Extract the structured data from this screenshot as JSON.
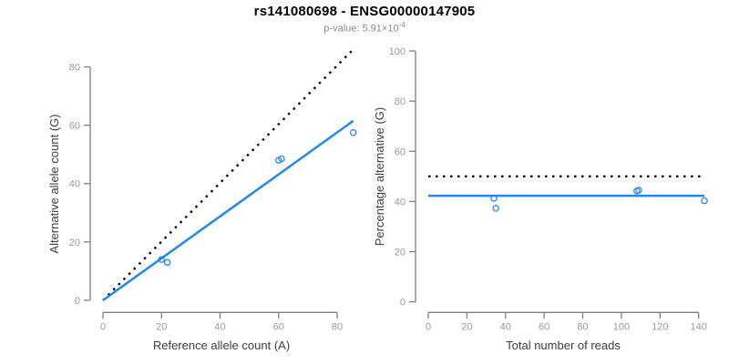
{
  "header": {
    "title": "rs141080698 - ENSG00000147905",
    "p_value_text": "p-value: 5.91×10",
    "p_value_exponent": "-4"
  },
  "colors": {
    "accent_blue": "#2188ED",
    "dotted_line_black": "#0a0a0a",
    "axis_gray": "#808080",
    "tick_label_gray": "#999999",
    "axis_title_gray": "#3d3d3d",
    "title_black": "#000000",
    "subtitle_gray": "#8a8a8a"
  },
  "chart_data": [
    {
      "type": "scatter",
      "panel": "left",
      "xlabel": "Reference allele count (A)",
      "ylabel": "Alternative allele count (G)",
      "xlim": [
        0,
        87
      ],
      "ylim": [
        0,
        87
      ],
      "xticks": [
        0,
        20,
        40,
        60,
        80
      ],
      "yticks": [
        0,
        20,
        40,
        60,
        80
      ],
      "grid": false,
      "legend": null,
      "points": [
        [
          20,
          14
        ],
        [
          22,
          13
        ],
        [
          60,
          48
        ],
        [
          61,
          48.5
        ],
        [
          85.5,
          57.5
        ]
      ],
      "lines": [
        {
          "name": "identity-line",
          "style": "dotted",
          "x1": 0,
          "y1": 0,
          "x2": 85,
          "y2": 85.5
        },
        {
          "name": "regression-line",
          "style": "solid",
          "x1": 0,
          "y1": 0,
          "x2": 85.5,
          "y2": 61.5
        }
      ]
    },
    {
      "type": "scatter",
      "panel": "right",
      "xlabel": "Total number of reads",
      "ylabel": "Percentage alternative (G)",
      "xlim": [
        0,
        146
      ],
      "ylim": [
        0,
        100
      ],
      "xticks": [
        0,
        20,
        40,
        60,
        80,
        100,
        120,
        140
      ],
      "yticks": [
        0,
        20,
        40,
        60,
        80,
        100
      ],
      "grid": false,
      "legend": null,
      "points": [
        [
          34,
          41.3
        ],
        [
          35,
          37.3
        ],
        [
          108,
          44.2
        ],
        [
          109,
          44.5
        ],
        [
          143,
          40.3
        ]
      ],
      "lines": [
        {
          "name": "fifty-percent-line",
          "style": "dotted",
          "x1": 0,
          "y1": 50,
          "x2": 141,
          "y2": 50
        },
        {
          "name": "mean-percentage-line",
          "style": "solid",
          "x1": 0,
          "y1": 42.3,
          "x2": 143,
          "y2": 42.3
        }
      ]
    }
  ]
}
